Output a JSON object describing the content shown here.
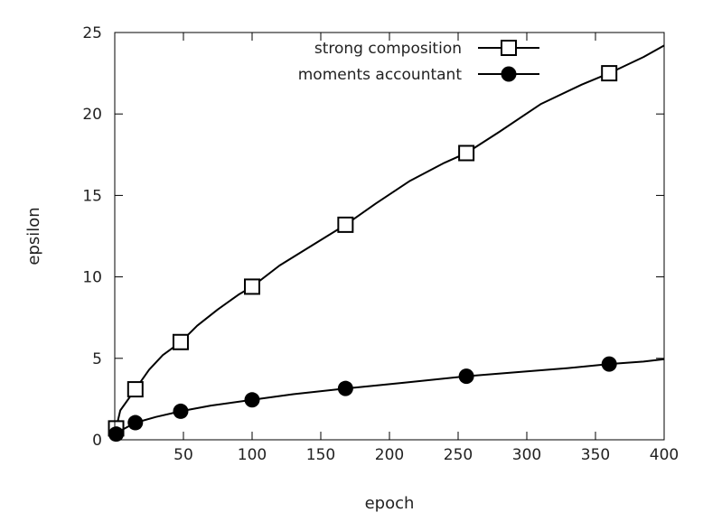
{
  "chart_data": {
    "type": "line",
    "title": "",
    "xlabel": "epoch",
    "ylabel": "epsilon",
    "xlim": [
      0,
      400
    ],
    "ylim": [
      0,
      25
    ],
    "xticks": [
      50,
      100,
      150,
      200,
      250,
      300,
      350,
      400
    ],
    "yticks": [
      0,
      5,
      10,
      15,
      20,
      25
    ],
    "grid": false,
    "legend_position": "top-right",
    "series": [
      {
        "name": "strong composition",
        "marker": "open-square",
        "line_x": [
          1,
          4,
          15,
          25,
          35,
          48,
          60,
          75,
          90,
          100,
          120,
          145,
          168,
          190,
          215,
          240,
          256,
          280,
          310,
          340,
          360,
          385,
          400
        ],
        "line_y": [
          0.7,
          1.8,
          3.1,
          4.3,
          5.2,
          6.0,
          7.0,
          8.0,
          8.9,
          9.4,
          10.7,
          12.0,
          13.2,
          14.5,
          15.9,
          17.0,
          17.6,
          18.9,
          20.6,
          21.8,
          22.5,
          23.5,
          24.2
        ],
        "markers_x": [
          1,
          15,
          48,
          100,
          168,
          256,
          360
        ],
        "markers_y": [
          0.7,
          3.1,
          6.0,
          9.4,
          13.2,
          17.6,
          22.5
        ]
      },
      {
        "name": "moments accountant",
        "marker": "filled-circle",
        "line_x": [
          1,
          5,
          15,
          30,
          48,
          70,
          100,
          130,
          168,
          210,
          256,
          300,
          330,
          360,
          385,
          400
        ],
        "line_y": [
          0.35,
          0.6,
          1.05,
          1.4,
          1.75,
          2.1,
          2.45,
          2.8,
          3.15,
          3.5,
          3.9,
          4.2,
          4.4,
          4.65,
          4.8,
          4.95
        ],
        "markers_x": [
          1,
          15,
          48,
          100,
          168,
          256,
          360
        ],
        "markers_y": [
          0.35,
          1.05,
          1.75,
          2.45,
          3.15,
          3.9,
          4.65
        ]
      }
    ]
  }
}
